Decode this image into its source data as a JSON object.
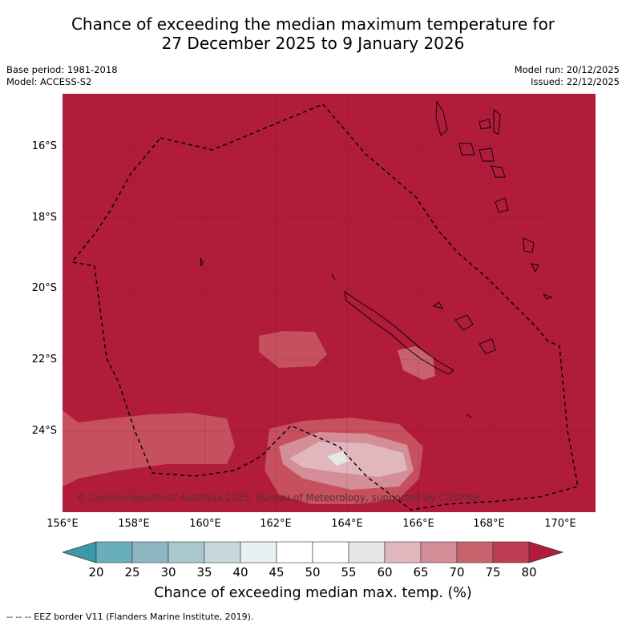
{
  "title": {
    "line1": "Chance of exceeding the median maximum temperature for",
    "line2": "27 December 2025 to 9 January 2026"
  },
  "meta": {
    "base_period": "Base period: 1981-2018",
    "model": "Model: ACCESS-S2",
    "model_run": "Model run: 20/12/2025",
    "issued": "Issued: 22/12/2025"
  },
  "map": {
    "latitude_labels": [
      "16°S",
      "18°S",
      "20°S",
      "22°S",
      "24°S"
    ],
    "longitude_labels": [
      "156°E",
      "158°E",
      "160°E",
      "162°E",
      "164°E",
      "166°E",
      "168°E",
      "170°E"
    ],
    "background_color": "#b01c3a",
    "copyright": "© Commonwealth of Australia 2025, Bureau of Meteorology, supported by COSPPac"
  },
  "colorbar": {
    "ticks": [
      "20",
      "25",
      "30",
      "35",
      "40",
      "45",
      "50",
      "55",
      "60",
      "65",
      "70",
      "75",
      "80"
    ],
    "colors": [
      "#68aebb",
      "#8db6c1",
      "#a9c7cc",
      "#c8d9dd",
      "#e9f0f1",
      "#ffffff",
      "#ffffff",
      "#e6e6e6",
      "#e0b7bc",
      "#d38e97",
      "#c8636e",
      "#bd3e52"
    ],
    "low_extend_color": "#3a9aa8",
    "high_extend_color": "#b01c3a",
    "label": "Chance of exceeding median max. temp. (%)"
  },
  "legend": {
    "eez": "--  --  -- EEZ border V11 (Flanders Marine Institute, 2019)."
  }
}
